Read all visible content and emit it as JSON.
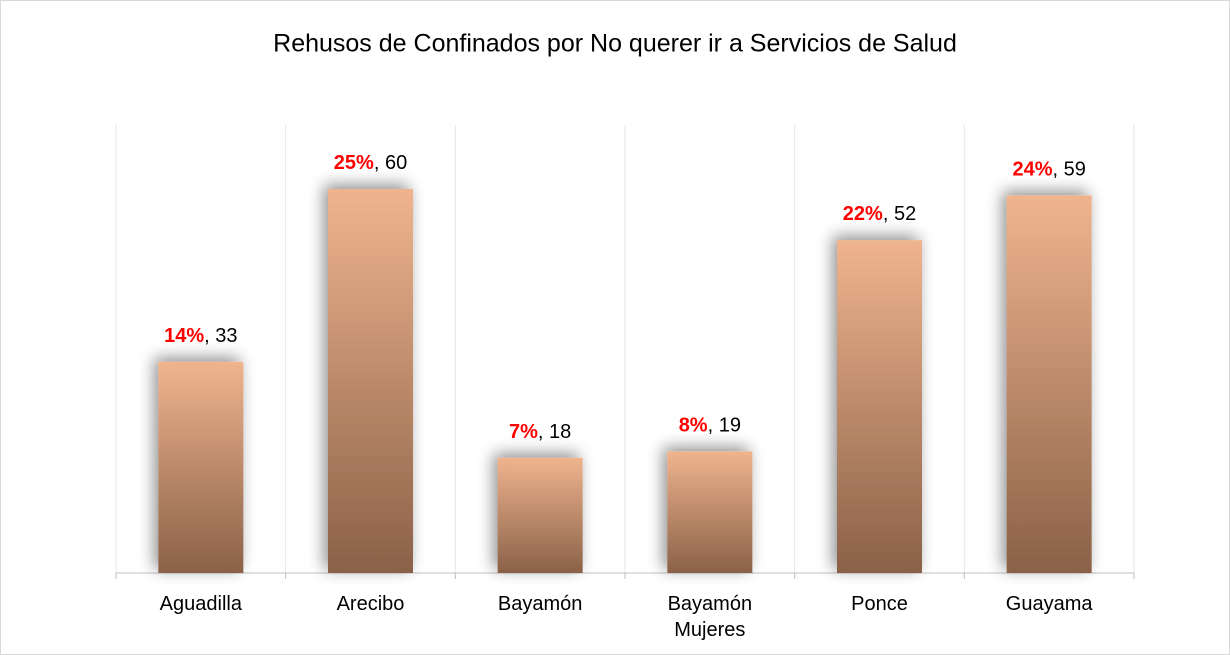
{
  "chart_data": {
    "type": "bar",
    "title": "Rehusos de Confinados por No querer ir a Servicios de Salud",
    "categories": [
      "Aguadilla",
      "Arecibo",
      "Bayamón",
      "Bayamón Mujeres",
      "Ponce",
      "Guayama"
    ],
    "values": [
      33,
      60,
      18,
      19,
      52,
      59
    ],
    "percentages": [
      14,
      25,
      7,
      8,
      22,
      24
    ],
    "percentage_labels": [
      "14%",
      "25%",
      "7%",
      "8%",
      "22%",
      "24%"
    ],
    "label_separator": ", ",
    "color_top": "#efb48e",
    "color_bottom": "#8a6148",
    "percentage_color": "#ff0000",
    "ylim": [
      0,
      70
    ],
    "grid": true
  }
}
